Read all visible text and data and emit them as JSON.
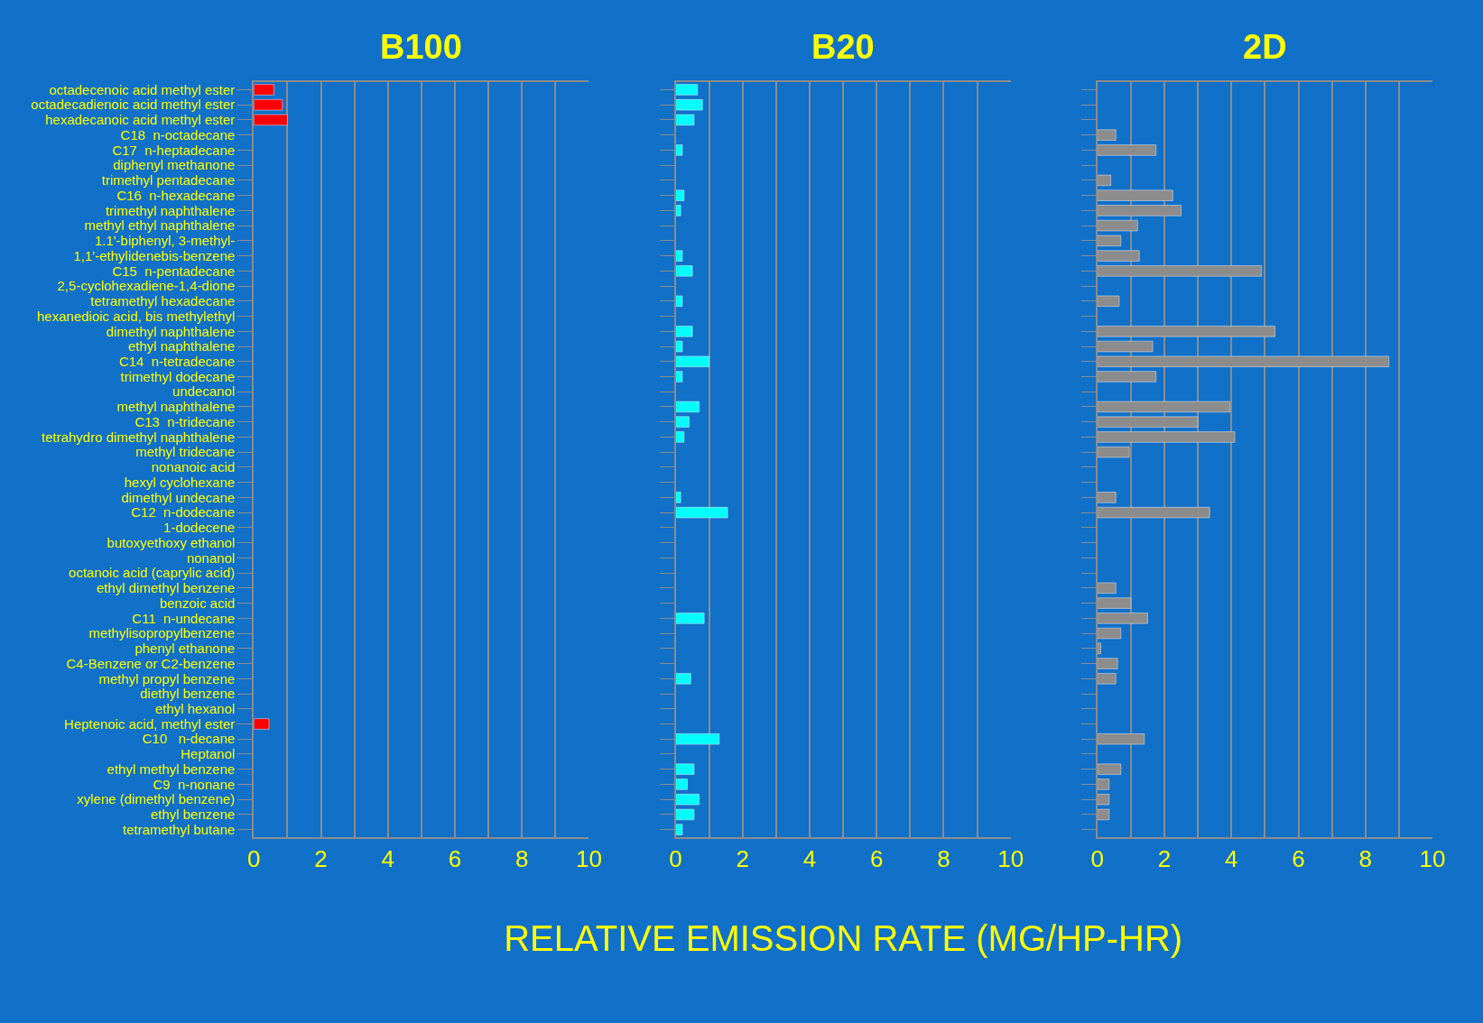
{
  "chart_data": [
    {
      "type": "bar",
      "orientation": "horizontal",
      "title": "B100",
      "color": "#ff0000",
      "grid": "x",
      "categories": [
        "octadecenoic acid methyl ester",
        "octadecadienoic acid methyl ester",
        "hexadecanoic acid methyl ester",
        "C18  n-octadecane",
        "C17  n-heptadecane",
        "diphenyl methanone",
        "trimethyl pentadecane",
        "C16  n-hexadecane",
        "trimethyl naphthalene",
        "methyl ethyl naphthalene",
        "1.1'-biphenyl, 3-methyl-",
        "1,1'-ethylidenebis-benzene",
        "C15  n-pentadecane",
        "2,5-cyclohexadiene-1,4-dione",
        "tetramethyl hexadecane",
        "hexanedioic acid, bis methylethyl",
        "dimethyl naphthalene",
        "ethyl naphthalene",
        "C14  n-tetradecane",
        "trimethyl dodecane",
        "undecanol",
        "methyl naphthalene",
        "C13  n-tridecane",
        "tetrahydro dimethyl naphthalene",
        "methyl tridecane",
        "nonanoic acid",
        "hexyl cyclohexane",
        "dimethyl undecane",
        "C12  n-dodecane",
        "1-dodecene",
        "butoxyethoxy ethanol",
        "nonanol",
        "octanoic acid (caprylic acid)",
        "ethyl dimethyl benzene",
        "benzoic acid",
        "C11  n-undecane",
        "methylisopropylbenzene",
        "phenyl ethanone",
        "C4-Benzene or C2-benzene",
        "methyl propyl benzene",
        "diethyl benzene",
        "ethyl hexanol",
        "Heptenoic acid, methyl ester",
        "C10   n-decane",
        "Heptanol",
        "ethyl methyl benzene",
        "C9  n-nonane",
        "xylene (dimethyl benzene)",
        "ethyl benzene",
        "tetramethyl butane"
      ],
      "values": [
        0.6,
        0.85,
        1.0,
        null,
        null,
        null,
        null,
        null,
        null,
        null,
        null,
        null,
        null,
        null,
        null,
        null,
        null,
        null,
        null,
        null,
        null,
        null,
        null,
        null,
        null,
        null,
        null,
        null,
        null,
        null,
        null,
        null,
        null,
        null,
        null,
        null,
        null,
        null,
        null,
        null,
        null,
        null,
        0.45,
        null,
        null,
        null,
        null,
        null,
        null,
        null
      ],
      "xlim": [
        0,
        10
      ],
      "xticks": [
        0,
        {
          "value": 1,
          "label": null
        },
        2,
        {
          "value": 3,
          "label": null
        },
        4,
        {
          "value": 5,
          "label": null
        },
        6,
        {
          "value": 7,
          "label": null
        },
        8,
        {
          "value": 9,
          "label": null
        },
        10
      ]
    },
    {
      "type": "bar",
      "orientation": "horizontal",
      "title": "B20",
      "xlabel": "RELATIVE EMISSION RATE (MG/HP-HR)",
      "color": "#00ffff",
      "grid": "x",
      "tick_labels": "x",
      "categories": [
        "octadecenoic acid methyl ester",
        "octadecadienoic acid methyl ester",
        "hexadecanoic acid methyl ester",
        "C18  n-octadecane",
        "C17  n-heptadecane",
        "diphenyl methanone",
        "trimethyl pentadecane",
        "C16  n-hexadecane",
        "trimethyl naphthalene",
        "methyl ethyl naphthalene",
        "1.1'-biphenyl, 3-methyl-",
        "1,1'-ethylidenebis-benzene",
        "C15  n-pentadecane",
        "2,5-cyclohexadiene-1,4-dione",
        "tetramethyl hexadecane",
        "hexanedioic acid, bis methylethyl",
        "dimethyl naphthalene",
        "ethyl naphthalene",
        "C14  n-tetradecane",
        "trimethyl dodecane",
        "undecanol",
        "methyl naphthalene",
        "C13  n-tridecane",
        "tetrahydro dimethyl naphthalene",
        "methyl tridecane",
        "nonanoic acid",
        "hexyl cyclohexane",
        "dimethyl undecane",
        "C12  n-dodecane",
        "1-dodecene",
        "butoxyethoxy ethanol",
        "nonanol",
        "octanoic acid (caprylic acid)",
        "ethyl dimethyl benzene",
        "benzoic acid",
        "C11  n-undecane",
        "methylisopropylbenzene",
        "phenyl ethanone",
        "C4-Benzene or C2-benzene",
        "methyl propyl benzene",
        "diethyl benzene",
        "ethyl hexanol",
        "Heptenoic acid, methyl ester",
        "C10   n-decane",
        "Heptanol",
        "ethyl methyl benzene",
        "C9  n-nonane",
        "xylene (dimethyl benzene)",
        "ethyl benzene",
        "tetramethyl butane"
      ],
      "values": [
        0.65,
        0.8,
        0.55,
        null,
        0.2,
        null,
        null,
        0.25,
        0.15,
        null,
        null,
        0.2,
        0.5,
        null,
        0.2,
        null,
        0.5,
        0.2,
        1.0,
        0.2,
        null,
        0.7,
        0.4,
        0.25,
        null,
        null,
        null,
        0.15,
        1.55,
        null,
        null,
        null,
        null,
        null,
        null,
        0.85,
        null,
        null,
        null,
        0.45,
        null,
        null,
        null,
        1.3,
        null,
        0.55,
        0.35,
        0.7,
        0.55,
        0.2
      ],
      "xlim": [
        0,
        10
      ],
      "xticks": [
        0,
        {
          "value": 1,
          "label": null
        },
        2,
        {
          "value": 3,
          "label": null
        },
        4,
        {
          "value": 5,
          "label": null
        },
        6,
        {
          "value": 7,
          "label": null
        },
        8,
        {
          "value": 9,
          "label": null
        },
        10
      ]
    },
    {
      "type": "bar",
      "orientation": "horizontal",
      "title": "2D",
      "color": "#8c8c8c",
      "grid": "x",
      "tick_labels": "x",
      "categories": [
        "octadecenoic acid methyl ester",
        "octadecadienoic acid methyl ester",
        "hexadecanoic acid methyl ester",
        "C18  n-octadecane",
        "C17  n-heptadecane",
        "diphenyl methanone",
        "trimethyl pentadecane",
        "C16  n-hexadecane",
        "trimethyl naphthalene",
        "methyl ethyl naphthalene",
        "1.1'-biphenyl, 3-methyl-",
        "1,1'-ethylidenebis-benzene",
        "C15  n-pentadecane",
        "2,5-cyclohexadiene-1,4-dione",
        "tetramethyl hexadecane",
        "hexanedioic acid, bis methylethyl",
        "dimethyl naphthalene",
        "ethyl naphthalene",
        "C14  n-tetradecane",
        "trimethyl dodecane",
        "undecanol",
        "methyl naphthalene",
        "C13  n-tridecane",
        "tetrahydro dimethyl naphthalene",
        "methyl tridecane",
        "nonanoic acid",
        "hexyl cyclohexane",
        "dimethyl undecane",
        "C12  n-dodecane",
        "1-dodecene",
        "butoxyethoxy ethanol",
        "nonanol",
        "octanoic acid (caprylic acid)",
        "ethyl dimethyl benzene",
        "benzoic acid",
        "C11  n-undecane",
        "methylisopropylbenzene",
        "phenyl ethanone",
        "C4-Benzene or C2-benzene",
        "methyl propyl benzene",
        "diethyl benzene",
        "ethyl hexanol",
        "Heptenoic acid, methyl ester",
        "C10   n-decane",
        "Heptanol",
        "ethyl methyl benzene",
        "C9  n-nonane",
        "xylene (dimethyl benzene)",
        "ethyl benzene",
        "tetramethyl butane"
      ],
      "values": [
        null,
        null,
        null,
        0.55,
        1.75,
        null,
        0.4,
        2.25,
        2.5,
        1.2,
        0.7,
        1.25,
        4.9,
        null,
        0.65,
        null,
        5.3,
        1.65,
        8.7,
        1.75,
        null,
        3.95,
        3.0,
        4.1,
        0.95,
        null,
        null,
        0.55,
        3.35,
        null,
        null,
        null,
        null,
        0.55,
        1.0,
        1.5,
        0.7,
        0.1,
        0.6,
        0.55,
        null,
        null,
        null,
        1.4,
        null,
        0.7,
        0.35,
        0.35,
        0.35,
        null
      ],
      "xlim": [
        0,
        10
      ],
      "xticks": [
        0,
        {
          "value": 1,
          "label": null
        },
        2,
        {
          "value": 3,
          "label": null
        },
        4,
        {
          "value": 5,
          "label": null
        },
        6,
        {
          "value": 7,
          "label": null
        },
        8,
        {
          "value": 9,
          "label": null
        },
        10
      ]
    }
  ]
}
